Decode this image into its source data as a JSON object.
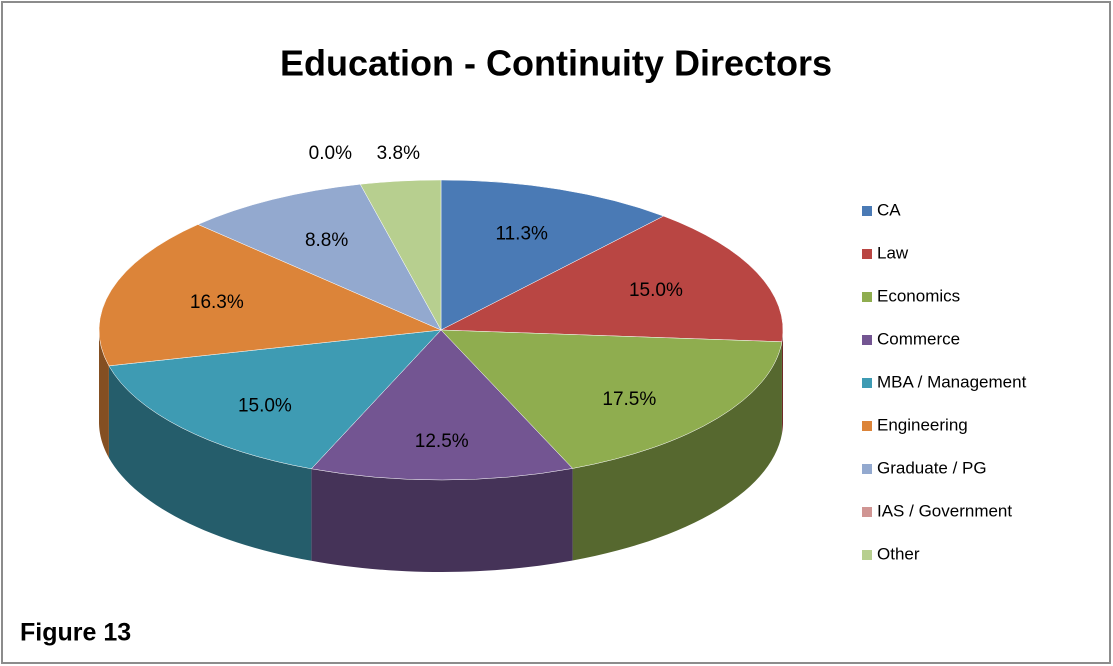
{
  "chart_data": {
    "type": "pie",
    "title": "Education - Continuity Directors",
    "categories": [
      "CA",
      "Law",
      "Economics",
      "Commerce",
      "MBA / Management",
      "Engineering",
      "Graduate / PG",
      "IAS / Government",
      "Other"
    ],
    "values": [
      11.3,
      15.0,
      17.5,
      12.5,
      15.0,
      16.3,
      8.8,
      0.0,
      3.8
    ],
    "value_labels": [
      "11.3%",
      "15.0%",
      "17.5%",
      "12.5%",
      "15.0%",
      "16.3%",
      "8.8%",
      "0.0%",
      "3.8%"
    ],
    "colors": [
      "#4a7ab5",
      "#b94643",
      "#8fad4f",
      "#735592",
      "#3e9bb3",
      "#dc8439",
      "#93a9cf",
      "#d09593",
      "#b7cf8f"
    ],
    "legend": "right",
    "annotation": "Figure 13"
  }
}
